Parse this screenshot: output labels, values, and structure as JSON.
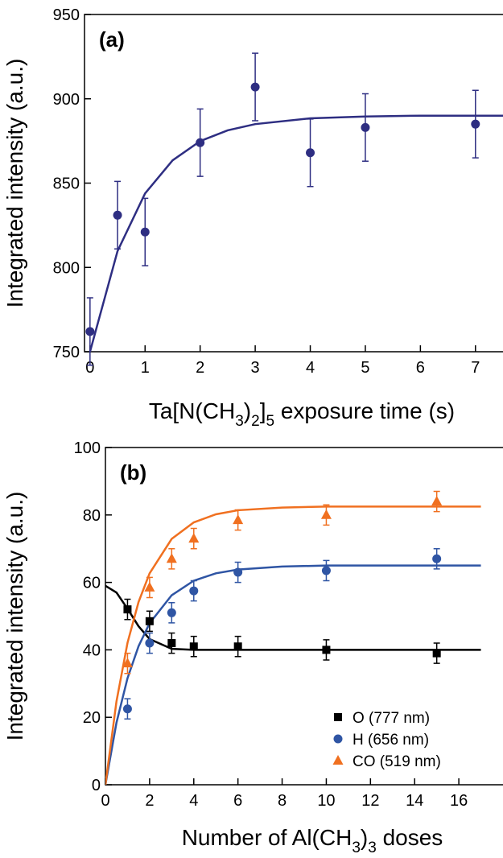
{
  "chart_data": [
    {
      "type": "scatter",
      "annotation": "(a)",
      "xlabel": [
        "Ta[N(CH",
        "3",
        ")",
        "2",
        "]",
        "5",
        " exposure time (s)"
      ],
      "ylabel": "Integrated intensity (a.u.)",
      "xlim": [
        -0.1,
        7.5
      ],
      "xticks": [
        0,
        1,
        2,
        3,
        4,
        5,
        6,
        7
      ],
      "ylim": [
        750,
        950
      ],
      "yticks": [
        750,
        800,
        850,
        900,
        950
      ],
      "series": [
        {
          "color": "#2e2e82",
          "marker": "circle",
          "x": [
            0,
            0.5,
            1,
            2,
            3,
            4,
            5,
            7
          ],
          "values": [
            762,
            831,
            821,
            874,
            907,
            868,
            883,
            885
          ],
          "errors": [
            20,
            20,
            20,
            20,
            20,
            20,
            20,
            20
          ]
        }
      ],
      "fits": [
        {
          "color": "#2e2e82",
          "x": [
            0,
            0.5,
            1,
            1.5,
            2,
            2.5,
            3,
            4,
            5,
            6,
            7,
            7.5
          ],
          "values": [
            750,
            809.7,
            843.9,
            863.5,
            874.9,
            881.3,
            885,
            888.4,
            889.5,
            890,
            890,
            890
          ]
        }
      ]
    },
    {
      "type": "scatter",
      "annotation": "(b)",
      "xlabel": [
        "Number of Al(CH",
        "3",
        ")",
        "3",
        " doses"
      ],
      "ylabel": "Integrated intensity (a.u.)",
      "xlim": [
        0,
        18
      ],
      "xticks": [
        0,
        2,
        4,
        6,
        8,
        10,
        12,
        14,
        16
      ],
      "ylim": [
        0,
        100
      ],
      "yticks": [
        0,
        20,
        40,
        60,
        80,
        100
      ],
      "legend": "lower right",
      "series": [
        {
          "name": "O (777 nm)",
          "color": "#000000",
          "marker": "square",
          "x": [
            1,
            2,
            3,
            4,
            6,
            10,
            15
          ],
          "values": [
            52,
            48.5,
            42,
            41,
            41,
            40,
            39
          ],
          "errors": [
            3,
            3,
            3,
            3,
            3,
            3,
            3
          ]
        },
        {
          "name": "H (656 nm)",
          "color": "#2f55a4",
          "marker": "circle",
          "x": [
            1,
            2,
            3,
            4,
            6,
            10,
            15
          ],
          "values": [
            22.5,
            42,
            51,
            57.5,
            63,
            63.5,
            67
          ],
          "errors": [
            3,
            3,
            3,
            3,
            3,
            3,
            3
          ]
        },
        {
          "name": "CO (519 nm)",
          "color": "#f07020",
          "marker": "triangle",
          "x": [
            1,
            2,
            3,
            4,
            6,
            10,
            15
          ],
          "values": [
            36,
            58.5,
            67,
            73,
            78.5,
            80,
            84
          ],
          "errors": [
            3,
            3,
            3,
            3,
            3,
            3,
            3
          ]
        }
      ],
      "fits": [
        {
          "color": "#000000",
          "x": [
            0,
            0.5,
            1,
            1.5,
            2,
            3,
            4,
            5,
            6,
            8,
            10,
            12,
            14,
            17
          ],
          "values": [
            59,
            57,
            52.2,
            47,
            43.2,
            40.3,
            40,
            40,
            40,
            40,
            40,
            40,
            40,
            40
          ]
        },
        {
          "color": "#2f55a4",
          "x": [
            0,
            0.5,
            1,
            1.5,
            2,
            3,
            4,
            5,
            6,
            8,
            10,
            12,
            14,
            17
          ],
          "values": [
            0,
            18.4,
            31.6,
            41.1,
            47.9,
            56.2,
            60.5,
            62.7,
            63.8,
            64.7,
            65,
            65,
            65,
            65
          ]
        },
        {
          "color": "#f07020",
          "x": [
            0,
            0.5,
            1,
            1.5,
            2,
            3,
            4,
            5,
            6,
            8,
            10,
            12,
            14,
            17
          ],
          "values": [
            0,
            24.7,
            42.1,
            54.2,
            62.7,
            72.9,
            77.8,
            80.2,
            81.4,
            82.2,
            82.5,
            82.5,
            82.5,
            82.5
          ]
        }
      ]
    }
  ]
}
